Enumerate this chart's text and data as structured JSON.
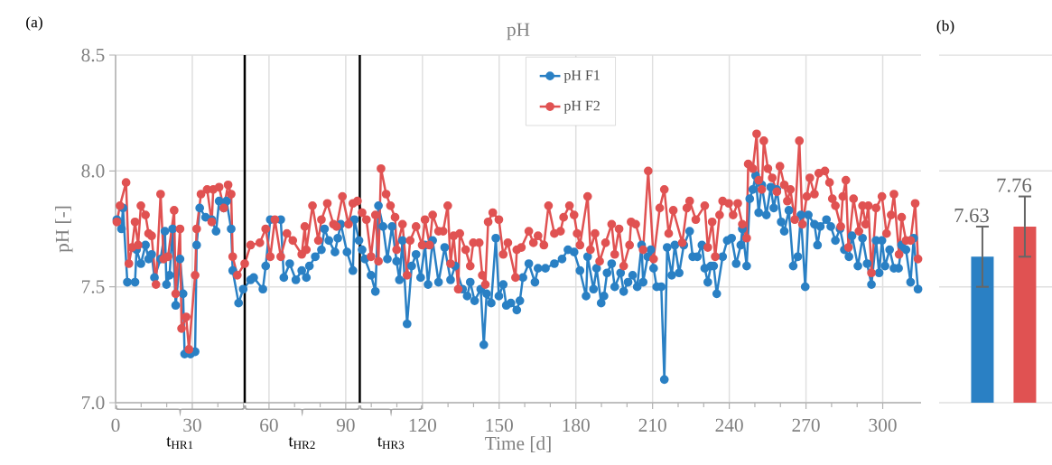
{
  "chart_data": [
    {
      "type": "line",
      "title": "pH",
      "xlabel": "Time [d]",
      "ylabel": "pH [-]",
      "annotations": [
        "(a)",
        "t$_{HR1}$",
        "t$_{HR2}$",
        "t$_{HR3}$"
      ],
      "series": [
        {
          "name": "pH F1",
          "color": "#2a80c4",
          "x": [
            0.5,
            2.3,
            2.9,
            4.6,
            7.6,
            8.2,
            9.9,
            11.7,
            12.9,
            14.1,
            15.2,
            17.6,
            19.3,
            19.9,
            21.1,
            22.3,
            23.5,
            25.2,
            26.4,
            27.0,
            29.3,
            31.1,
            31.7,
            32.9,
            35.2,
            37.6,
            39.3,
            40.5,
            42.3,
            43.4,
            45.2,
            45.8,
            48.1,
            49.9,
            52.8,
            54.0,
            57.6,
            58.7,
            60.5,
            64.6,
            65.8,
            68.1,
            70.5,
            72.8,
            74.6,
            75.8,
            78.1,
            80.5,
            81.7,
            83.4,
            85.8,
            86.9,
            88.1,
            90.5,
            92.8,
            93.4,
            95.2,
            96.4,
            97.5,
            99.9,
            101.6,
            102.8,
            104.6,
            106.3,
            108.1,
            109.9,
            111.0,
            112.2,
            114.0,
            115.8,
            117.5,
            119.3,
            121.0,
            122.2,
            124.0,
            126.3,
            128.7,
            131.0,
            132.8,
            135.7,
            137.5,
            138.7,
            140.4,
            142.8,
            144.0,
            145.1,
            146.9,
            148.7,
            149.9,
            151.6,
            152.8,
            154.6,
            156.9,
            158.1,
            159.3,
            161.6,
            164.0,
            165.2,
            168.1,
            171.6,
            174.6,
            176.9,
            179.3,
            181.6,
            184.0,
            184.6,
            186.9,
            188.1,
            189.9,
            191.0,
            192.2,
            194.0,
            195.2,
            197.5,
            198.7,
            200.4,
            202.2,
            204.0,
            205.7,
            206.3,
            208.1,
            209.3,
            210.4,
            211.6,
            213.4,
            214.6,
            215.7,
            217.5,
            218.7,
            220.4,
            222.2,
            224.5,
            225.7,
            227.5,
            229.3,
            230.4,
            231.6,
            232.8,
            233.9,
            235.1,
            237.4,
            239.2,
            240.9,
            242.7,
            244.5,
            245.1,
            246.8,
            248.0,
            249.2,
            250.3,
            251.5,
            252.7,
            254.5,
            256.2,
            257.4,
            258.6,
            260.3,
            261.5,
            263.3,
            265.0,
            266.8,
            268.0,
            269.7,
            270.9,
            273.3,
            274.5,
            275.6,
            278.0,
            279.7,
            281.5,
            283.3,
            285.0,
            286.8,
            288.0,
            290.3,
            292.1,
            293.9,
            295.6,
            297.4,
            298.6,
            299.7,
            300.9,
            302.7,
            304.4,
            306.2,
            307.4,
            309.1,
            310.9,
            312.1,
            313.8
          ],
          "values": [
            7.79,
            7.75,
            7.84,
            7.52,
            7.52,
            7.66,
            7.6,
            7.68,
            7.62,
            7.64,
            7.54,
            7.62,
            7.74,
            7.51,
            7.55,
            7.75,
            7.42,
            7.62,
            7.47,
            7.21,
            7.21,
            7.22,
            7.68,
            7.84,
            7.8,
            7.79,
            7.74,
            7.87,
            7.84,
            7.87,
            7.75,
            7.57,
            7.43,
            7.49,
            7.53,
            7.54,
            7.49,
            7.59,
            7.79,
            7.79,
            7.54,
            7.6,
            7.53,
            7.57,
            7.54,
            7.59,
            7.63,
            7.66,
            7.75,
            7.7,
            7.65,
            7.71,
            7.77,
            7.65,
            7.57,
            7.79,
            7.7,
            7.66,
            7.62,
            7.55,
            7.48,
            7.85,
            7.76,
            7.62,
            7.76,
            7.61,
            7.53,
            7.7,
            7.34,
            7.59,
            7.64,
            7.54,
            7.68,
            7.51,
            7.7,
            7.52,
            7.67,
            7.53,
            7.59,
            7.49,
            7.46,
            7.52,
            7.44,
            7.49,
            7.25,
            7.47,
            7.43,
            7.71,
            7.46,
            7.51,
            7.42,
            7.43,
            7.4,
            7.44,
            7.54,
            7.6,
            7.52,
            7.58,
            7.58,
            7.6,
            7.62,
            7.66,
            7.65,
            7.57,
            7.46,
            7.63,
            7.49,
            7.58,
            7.43,
            7.46,
            7.56,
            7.6,
            7.5,
            7.56,
            7.48,
            7.52,
            7.55,
            7.5,
            7.68,
            7.52,
            7.63,
            7.66,
            7.58,
            7.5,
            7.5,
            7.1,
            7.67,
            7.55,
            7.68,
            7.56,
            7.68,
            7.74,
            7.63,
            7.63,
            7.68,
            7.58,
            7.52,
            7.59,
            7.59,
            7.47,
            7.63,
            7.7,
            7.71,
            7.6,
            7.68,
            7.75,
            7.59,
            7.88,
            7.92,
            7.98,
            7.82,
            7.94,
            7.81,
            7.93,
            7.84,
            7.92,
            7.78,
            7.74,
            7.83,
            7.59,
            7.63,
            7.81,
            7.5,
            7.81,
            7.77,
            7.68,
            7.76,
            7.79,
            7.76,
            7.7,
            7.75,
            7.66,
            7.63,
            7.72,
            7.59,
            7.71,
            7.6,
            7.51,
            7.7,
            7.56,
            7.7,
            7.59,
            7.66,
            7.58,
            7.58,
            7.68,
            7.66,
            7.52,
            7.71,
            7.49
          ]
        },
        {
          "name": "pH F2",
          "color": "#e05252",
          "x": [
            0.5,
            1.7,
            4.1,
            5.2,
            6.4,
            7.6,
            8.8,
            9.9,
            11.7,
            12.9,
            14.1,
            15.8,
            17.6,
            18.8,
            20.5,
            22.9,
            23.5,
            25.2,
            25.8,
            27.6,
            28.7,
            31.1,
            31.7,
            33.4,
            35.8,
            37.6,
            38.2,
            40.5,
            42.3,
            44.0,
            45.2,
            45.8,
            47.6,
            50.5,
            52.8,
            56.4,
            58.7,
            60.5,
            62.3,
            64.6,
            67.0,
            69.3,
            72.8,
            74.0,
            74.6,
            77.0,
            79.3,
            80.5,
            82.8,
            85.2,
            86.4,
            88.7,
            91.1,
            92.8,
            94.6,
            96.4,
            98.1,
            99.9,
            101.6,
            102.8,
            103.8,
            105.8,
            107.5,
            109.3,
            109.9,
            112.2,
            114.0,
            115.2,
            117.5,
            119.9,
            121.0,
            122.8,
            124.0,
            126.3,
            128.1,
            129.9,
            131.0,
            132.2,
            134.0,
            134.6,
            136.9,
            138.7,
            139.9,
            142.2,
            143.4,
            144.6,
            145.7,
            147.5,
            149.9,
            151.6,
            153.4,
            156.4,
            156.9,
            158.7,
            161.6,
            163.4,
            165.2,
            167.5,
            169.3,
            171.6,
            174.0,
            175.2,
            177.5,
            179.3,
            180.5,
            181.6,
            184.6,
            185.7,
            187.5,
            189.3,
            191.6,
            194.0,
            195.2,
            196.9,
            198.7,
            201.0,
            201.6,
            203.4,
            206.3,
            208.3,
            210.4,
            212.8,
            214.6,
            216.3,
            218.1,
            221.6,
            223.4,
            224.5,
            226.9,
            230.4,
            231.6,
            233.3,
            234.5,
            236.2,
            237.4,
            239.8,
            241.5,
            243.3,
            245.1,
            246.8,
            247.4,
            249.2,
            250.7,
            251.5,
            252.7,
            253.5,
            255.1,
            256.8,
            258.6,
            259.8,
            261.5,
            262.7,
            263.9,
            265.6,
            267.4,
            268.6,
            270.3,
            271.5,
            273.3,
            275.0,
            277.4,
            279.2,
            280.3,
            281.5,
            283.6,
            284.4,
            285.6,
            286.6,
            288.6,
            290.7,
            292.1,
            293.3,
            294.4,
            295.6,
            297.4,
            299.7,
            301.5,
            303.3,
            304.4,
            306.4,
            307.4,
            309.1,
            310.9,
            312.7,
            313.8
          ],
          "values": [
            7.78,
            7.85,
            7.95,
            7.6,
            7.67,
            7.78,
            7.68,
            7.85,
            7.81,
            7.73,
            7.72,
            7.51,
            7.9,
            7.62,
            7.63,
            7.83,
            7.47,
            7.75,
            7.32,
            7.37,
            7.23,
            7.55,
            7.75,
            7.9,
            7.92,
            7.78,
            7.92,
            7.93,
            7.84,
            7.94,
            7.9,
            7.63,
            7.55,
            7.6,
            7.68,
            7.69,
            7.75,
            7.63,
            7.79,
            7.63,
            7.73,
            7.7,
            7.64,
            7.76,
            7.66,
            7.85,
            7.7,
            7.79,
            7.86,
            7.77,
            7.76,
            7.89,
            7.77,
            7.86,
            7.87,
            7.82,
            7.79,
            7.63,
            7.81,
            7.61,
            8.01,
            7.9,
            7.85,
            7.8,
            7.66,
            7.77,
            7.55,
            7.7,
            7.76,
            7.68,
            7.79,
            7.68,
            7.81,
            7.74,
            7.74,
            7.85,
            7.6,
            7.72,
            7.49,
            7.73,
            7.66,
            7.59,
            7.69,
            7.69,
            7.55,
            7.51,
            7.78,
            7.82,
            7.79,
            7.64,
            7.69,
            7.54,
            7.66,
            7.67,
            7.74,
            7.69,
            7.72,
            7.68,
            7.85,
            7.73,
            7.74,
            7.8,
            7.85,
            7.81,
            7.73,
            7.68,
            7.89,
            7.66,
            7.73,
            7.61,
            7.69,
            7.77,
            7.64,
            7.75,
            7.59,
            7.68,
            7.78,
            7.77,
            7.66,
            8.0,
            7.62,
            7.84,
            7.92,
            7.73,
            7.83,
            7.69,
            7.84,
            7.87,
            7.79,
            7.85,
            7.67,
            7.78,
            7.63,
            7.81,
            7.87,
            7.86,
            7.81,
            7.86,
            7.77,
            7.71,
            8.03,
            8.01,
            8.16,
            7.96,
            7.92,
            8.13,
            8.01,
            7.97,
            7.91,
            8.02,
            7.94,
            7.87,
            7.92,
            7.79,
            8.13,
            7.77,
            7.89,
            7.97,
            7.9,
            7.99,
            8.0,
            7.95,
            7.88,
            7.85,
            7.76,
            7.89,
            7.96,
            7.67,
            7.88,
            7.74,
            7.85,
            7.77,
            7.85,
            7.56,
            7.84,
            7.89,
            7.73,
            7.81,
            7.9,
            7.64,
            7.8,
            7.7,
            7.7,
            7.86,
            7.62
          ]
        }
      ],
      "xlim": [
        0,
        315
      ],
      "ylim": [
        7,
        8.5
      ],
      "xticks": [
        0,
        30,
        60,
        90,
        120,
        150,
        180,
        210,
        240,
        270,
        300
      ],
      "yticks": [
        {
          "value": 7,
          "label": "7.0"
        },
        {
          "value": 7.5,
          "label": "7.5"
        },
        {
          "value": 8,
          "label": "8.0"
        },
        {
          "value": 8.5,
          "label": "8.5"
        }
      ],
      "grid": true,
      "legend": "top",
      "marker": "circle",
      "line_style": "solid",
      "ref_lines": [
        {
          "axis": "x",
          "value": 50.5,
          "color": "#000000"
        },
        {
          "axis": "x",
          "value": 95.5,
          "color": "#000000"
        }
      ]
    },
    {
      "type": "bar",
      "annotations": [
        "(b)"
      ],
      "categories": [
        null,
        null
      ],
      "values": [
        7.63,
        7.76
      ],
      "colors": [
        "#2a80c4",
        "#e05252"
      ],
      "errors": [
        0.13,
        0.13
      ],
      "value_labels": [
        "7.63",
        "7.76"
      ],
      "ylim": [
        7,
        8.5
      ],
      "yticks": [
        7,
        7.5,
        8,
        8.5
      ],
      "grid": "y",
      "tick_labels": false
    }
  ]
}
